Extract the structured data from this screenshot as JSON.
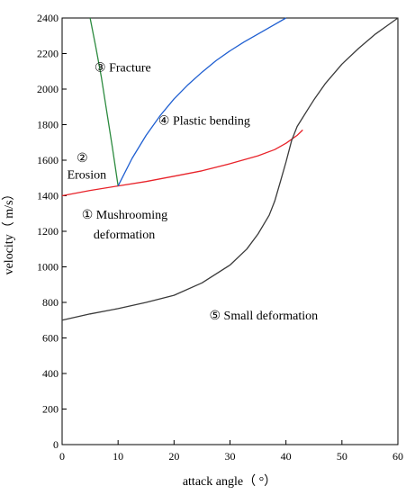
{
  "chart_data": {
    "type": "line",
    "xlabel": "attack angle（ °）",
    "ylabel": "velocity（ m/s）",
    "xlim": [
      0,
      60
    ],
    "ylim": [
      0,
      2400
    ],
    "xticks": [
      0,
      10,
      20,
      30,
      40,
      50,
      60
    ],
    "yticks": [
      0,
      200,
      400,
      600,
      800,
      1000,
      1200,
      1400,
      1600,
      1800,
      2000,
      2200,
      2400
    ],
    "grid": false,
    "legend": "none",
    "series": [
      {
        "color": "#e8232a",
        "x": [
          0,
          5,
          10,
          15,
          20,
          25,
          30,
          35,
          38,
          40,
          42,
          43
        ],
        "y": [
          1400,
          1430,
          1455,
          1480,
          1510,
          1540,
          1580,
          1625,
          1660,
          1695,
          1740,
          1770
        ]
      },
      {
        "color": "#2b8a3e",
        "x": [
          10,
          9,
          8,
          7,
          6,
          5
        ],
        "y": [
          1455,
          1670,
          1870,
          2070,
          2240,
          2400
        ]
      },
      {
        "color": "#1f5fd1",
        "x": [
          10,
          12.5,
          15,
          17.5,
          20,
          22.5,
          25,
          27.5,
          30,
          32.5,
          35,
          37.5,
          40
        ],
        "y": [
          1455,
          1610,
          1740,
          1850,
          1945,
          2025,
          2095,
          2160,
          2215,
          2265,
          2310,
          2355,
          2400
        ]
      },
      {
        "color": "#3a3a3a",
        "x": [
          0,
          5,
          10,
          15,
          20,
          25,
          30,
          33,
          35,
          37,
          38,
          39,
          40,
          41,
          42,
          43,
          44,
          45,
          47,
          50,
          53,
          56,
          58,
          60
        ],
        "y": [
          700,
          735,
          765,
          800,
          840,
          910,
          1010,
          1100,
          1185,
          1290,
          1370,
          1480,
          1590,
          1710,
          1790,
          1840,
          1890,
          1940,
          2030,
          2140,
          2230,
          2310,
          2355,
          2400
        ]
      }
    ],
    "annotations": [
      {
        "symbol": "③",
        "text": "Fracture",
        "x": 5.8,
        "y": 2100
      },
      {
        "symbol": "④",
        "text": "Plastic bending",
        "x": 17.2,
        "y": 1800
      },
      {
        "symbol": "②",
        "text": "",
        "x": 2.6,
        "y": 1590
      },
      {
        "symbol": "",
        "text": "Erosion",
        "x": 0.9,
        "y": 1495
      },
      {
        "symbol": "①",
        "text": "Mushrooming",
        "x": 3.5,
        "y": 1270
      },
      {
        "symbol": "",
        "text": "deformation",
        "x": 5.6,
        "y": 1160
      },
      {
        "symbol": "⑤",
        "text": "Small deformation",
        "x": 26.3,
        "y": 705
      }
    ]
  }
}
